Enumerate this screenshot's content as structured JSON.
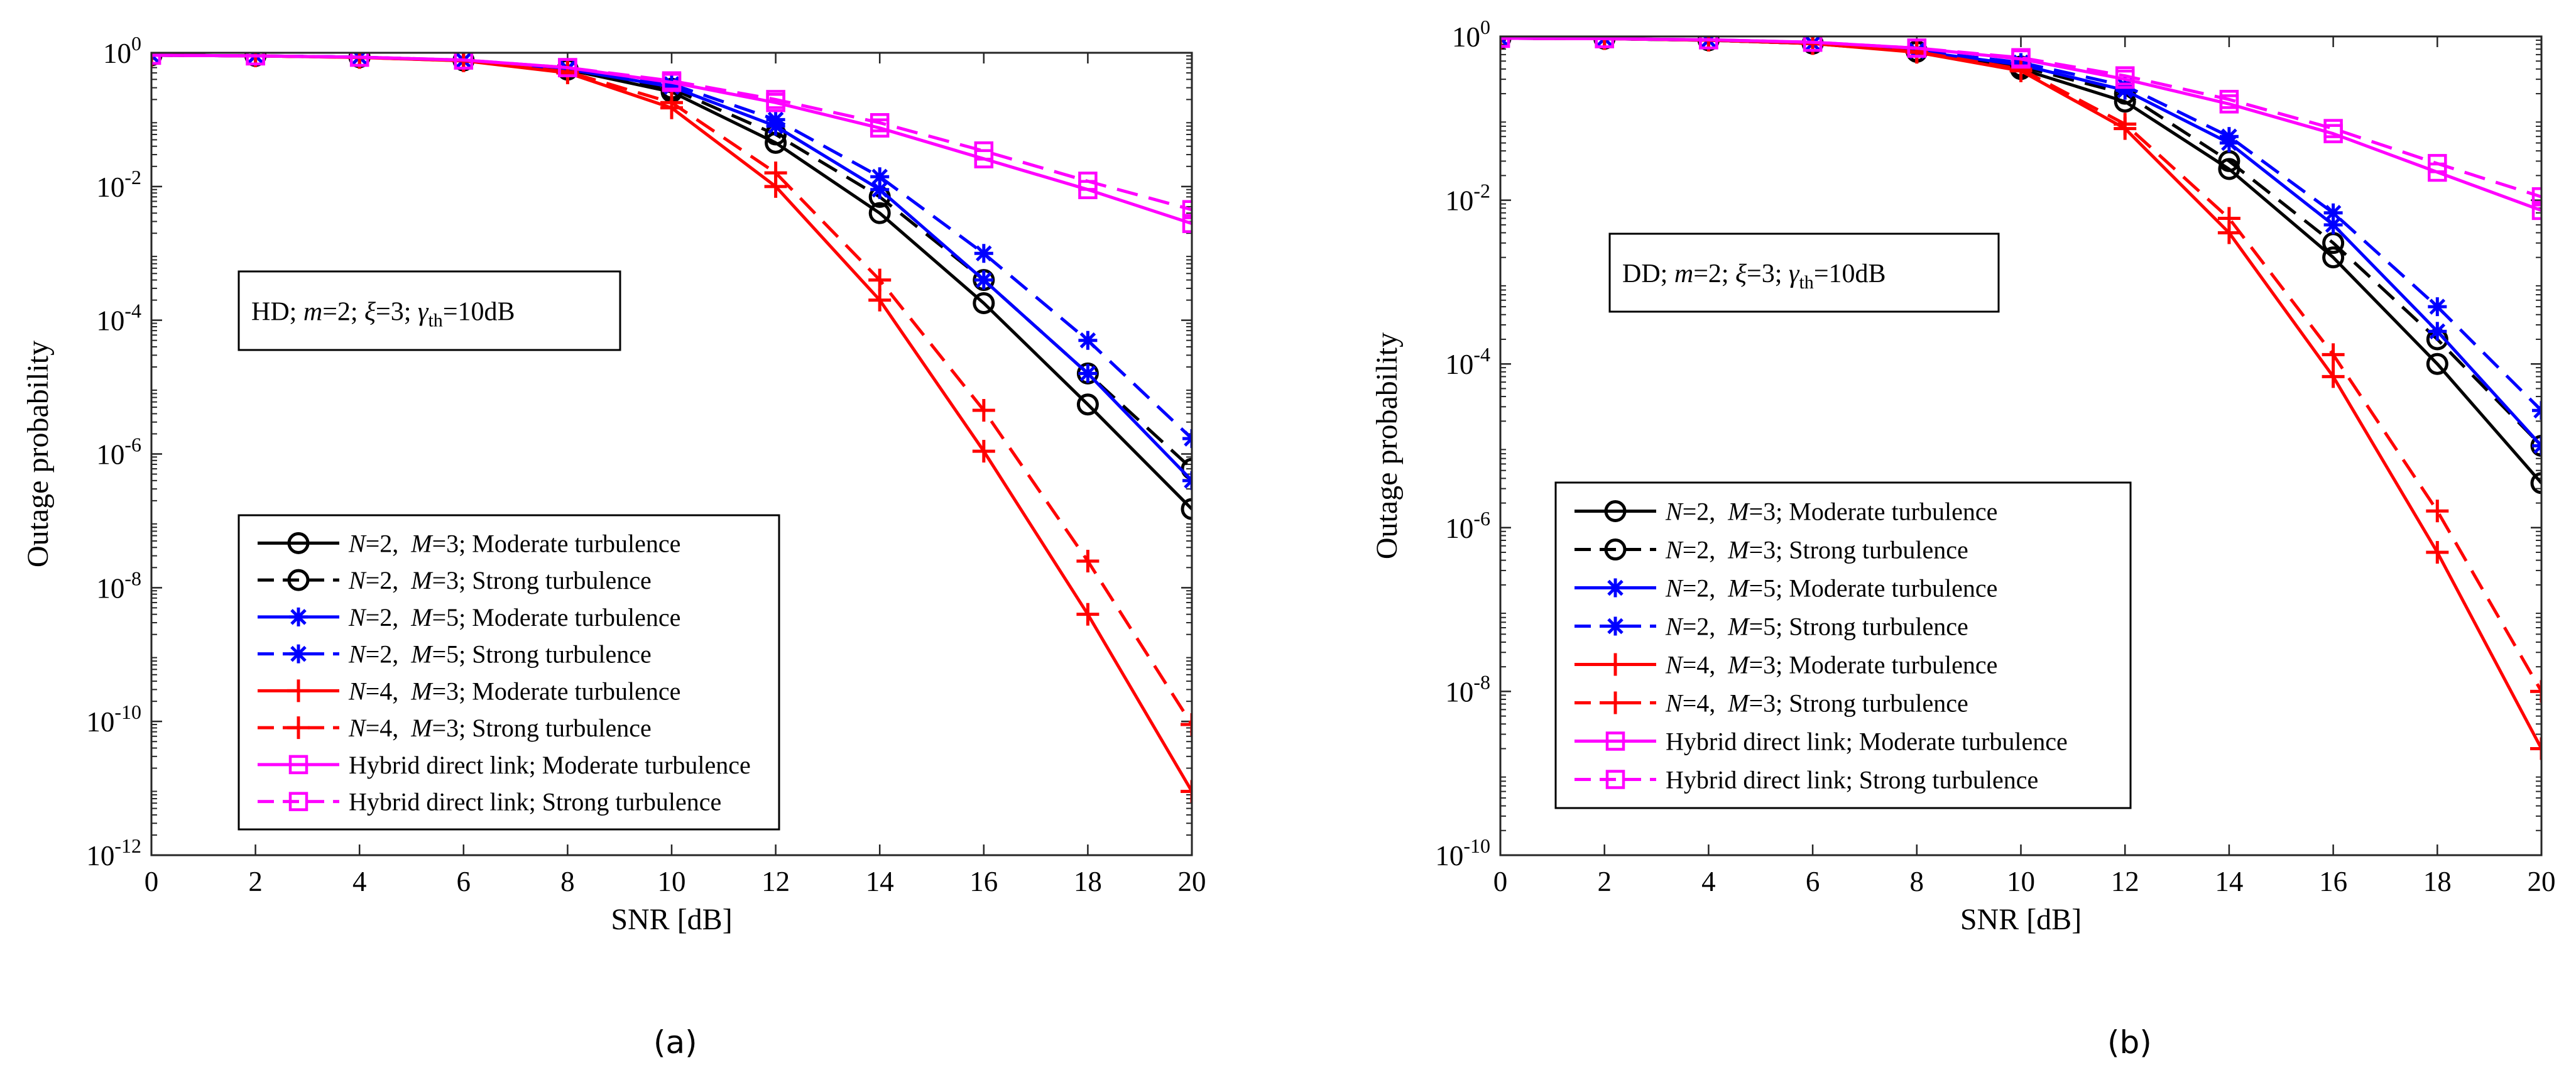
{
  "captions": {
    "a": "(a)",
    "b": "(b)"
  },
  "chart_data": [
    {
      "type": "line",
      "yscale": "log",
      "title": "",
      "xlabel": "SNR [dB]",
      "ylabel": "Outage probability",
      "xlim": [
        0,
        20
      ],
      "ylim_exp": [
        -12,
        0
      ],
      "x_ticks": [
        "0",
        "2",
        "4",
        "6",
        "8",
        "10",
        "12",
        "14",
        "16",
        "18",
        "20"
      ],
      "y_ticks_exp": [
        "0",
        "-2",
        "-4",
        "-6",
        "-8",
        "-10",
        "-12"
      ],
      "grid": false,
      "annotation": {
        "mode": "HD",
        "m_val": "2",
        "xi_val": "3",
        "gamma_val": "10dB"
      },
      "legend_position": "lower-left",
      "x": [
        0,
        2,
        4,
        6,
        8,
        10,
        12,
        14,
        16,
        18,
        20
      ],
      "series": [
        {
          "name_n": "2",
          "name_m": "3",
          "name_rest": "; Moderate turbulence",
          "color": "#000000",
          "dash": "solid",
          "marker": "circle",
          "values": [
            0.92,
            0.9,
            0.86,
            0.77,
            0.56,
            0.26,
            0.045,
            0.004,
            0.00018,
            5.5e-06,
            1.5e-07
          ]
        },
        {
          "name_n": "2",
          "name_m": "3",
          "name_rest": "; Strong turbulence",
          "color": "#000000",
          "dash": "dashed",
          "marker": "circle",
          "values": [
            0.92,
            0.9,
            0.86,
            0.77,
            0.57,
            0.29,
            0.06,
            0.007,
            0.0004,
            1.6e-05,
            6e-07
          ]
        },
        {
          "name_n": "2",
          "name_m": "5",
          "name_rest": "; Moderate turbulence",
          "color": "#0000ff",
          "dash": "solid",
          "marker": "star",
          "values": [
            0.92,
            0.9,
            0.86,
            0.77,
            0.57,
            0.31,
            0.08,
            0.009,
            0.0004,
            1.6e-05,
            4e-07
          ]
        },
        {
          "name_n": "2",
          "name_m": "5",
          "name_rest": "; Strong turbulence",
          "color": "#0000ff",
          "dash": "dashed",
          "marker": "star",
          "values": [
            0.92,
            0.9,
            0.86,
            0.77,
            0.58,
            0.34,
            0.1,
            0.014,
            0.001,
            5e-05,
            1.7e-06
          ]
        },
        {
          "name_n": "4",
          "name_m": "3",
          "name_rest": "; Moderate turbulence",
          "color": "#ff0000",
          "dash": "solid",
          "marker": "plus",
          "values": [
            0.92,
            0.9,
            0.85,
            0.76,
            0.5,
            0.15,
            0.01,
            0.0002,
            1.1e-06,
            4e-09,
            9e-12
          ]
        },
        {
          "name_n": "4",
          "name_m": "3",
          "name_rest": "; Strong turbulence",
          "color": "#ff0000",
          "dash": "dashed",
          "marker": "plus",
          "values": [
            0.92,
            0.9,
            0.85,
            0.76,
            0.52,
            0.18,
            0.016,
            0.0004,
            4.5e-06,
            2.5e-08,
            9e-11
          ]
        },
        {
          "label": "Hybrid direct link; Moderate turbulence",
          "color": "#ff00ff",
          "dash": "solid",
          "marker": "square",
          "values": [
            0.92,
            0.9,
            0.86,
            0.78,
            0.6,
            0.36,
            0.18,
            0.075,
            0.026,
            0.009,
            0.0028
          ]
        },
        {
          "label": "Hybrid direct link; Strong turbulence",
          "color": "#ff00ff",
          "dash": "dashed",
          "marker": "square",
          "values": [
            0.92,
            0.9,
            0.86,
            0.78,
            0.6,
            0.38,
            0.2,
            0.09,
            0.034,
            0.012,
            0.0045
          ]
        }
      ]
    },
    {
      "type": "line",
      "yscale": "log",
      "title": "",
      "xlabel": "SNR [dB]",
      "ylabel": "Outage probability",
      "xlim": [
        0,
        20
      ],
      "ylim_exp": [
        -10,
        0
      ],
      "x_ticks": [
        "0",
        "2",
        "4",
        "6",
        "8",
        "10",
        "12",
        "14",
        "16",
        "18",
        "20"
      ],
      "y_ticks_exp": [
        "0",
        "-2",
        "-4",
        "-6",
        "-8",
        "-10"
      ],
      "grid": false,
      "annotation": {
        "mode": "DD",
        "m_val": "2",
        "xi_val": "3",
        "gamma_val": "10dB"
      },
      "legend_position": "lower-left",
      "x": [
        0,
        2,
        4,
        6,
        8,
        10,
        12,
        14,
        16,
        18,
        20
      ],
      "series": [
        {
          "name_n": "2",
          "name_m": "3",
          "name_rest": "; Moderate turbulence",
          "color": "#000000",
          "dash": "solid",
          "marker": "circle",
          "values": [
            0.95,
            0.94,
            0.9,
            0.82,
            0.65,
            0.4,
            0.16,
            0.024,
            0.002,
            0.0001,
            3.5e-06
          ]
        },
        {
          "name_n": "2",
          "name_m": "3",
          "name_rest": "; Strong turbulence",
          "color": "#000000",
          "dash": "dashed",
          "marker": "circle",
          "values": [
            0.95,
            0.94,
            0.9,
            0.82,
            0.66,
            0.43,
            0.2,
            0.03,
            0.003,
            0.0002,
            1e-05
          ]
        },
        {
          "name_n": "2",
          "name_m": "5",
          "name_rest": "; Moderate turbulence",
          "color": "#0000ff",
          "dash": "solid",
          "marker": "star",
          "values": [
            0.95,
            0.94,
            0.9,
            0.82,
            0.66,
            0.45,
            0.22,
            0.05,
            0.005,
            0.00025,
            1e-05
          ]
        },
        {
          "name_n": "2",
          "name_m": "5",
          "name_rest": "; Strong turbulence",
          "color": "#0000ff",
          "dash": "dashed",
          "marker": "star",
          "values": [
            0.95,
            0.94,
            0.9,
            0.82,
            0.67,
            0.48,
            0.25,
            0.06,
            0.007,
            0.0005,
            2.7e-05
          ]
        },
        {
          "name_n": "4",
          "name_m": "3",
          "name_rest": "; Moderate turbulence",
          "color": "#ff0000",
          "dash": "solid",
          "marker": "plus",
          "values": [
            0.95,
            0.94,
            0.9,
            0.82,
            0.64,
            0.38,
            0.075,
            0.004,
            7e-05,
            5e-07,
            2e-09
          ]
        },
        {
          "name_n": "4",
          "name_m": "3",
          "name_rest": "; Strong turbulence",
          "color": "#ff0000",
          "dash": "dashed",
          "marker": "plus",
          "values": [
            0.95,
            0.94,
            0.9,
            0.82,
            0.65,
            0.4,
            0.085,
            0.006,
            0.00013,
            1.6e-06,
            1e-08
          ]
        },
        {
          "label": "Hybrid direct link; Moderate turbulence",
          "color": "#ff00ff",
          "dash": "solid",
          "marker": "square",
          "values": [
            0.95,
            0.94,
            0.91,
            0.85,
            0.72,
            0.53,
            0.3,
            0.15,
            0.065,
            0.022,
            0.0075
          ]
        },
        {
          "label": "Hybrid direct link; Strong turbulence",
          "color": "#ff00ff",
          "dash": "dashed",
          "marker": "square",
          "values": [
            0.95,
            0.94,
            0.91,
            0.85,
            0.72,
            0.55,
            0.33,
            0.17,
            0.075,
            0.028,
            0.011
          ]
        }
      ]
    }
  ]
}
